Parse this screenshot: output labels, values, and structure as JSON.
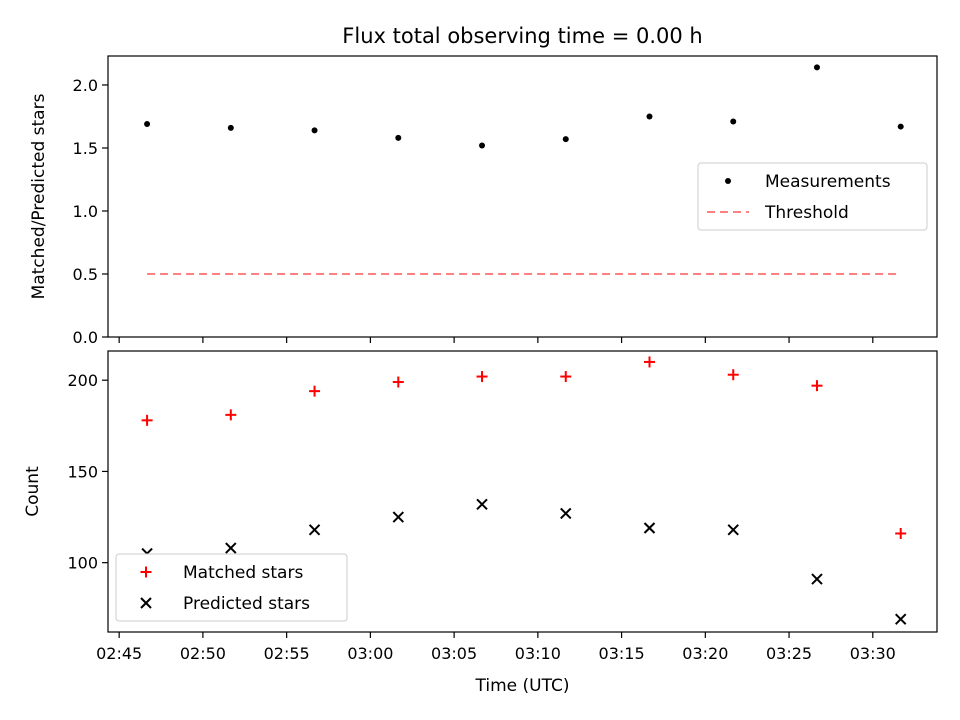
{
  "chart_data": [
    {
      "type": "scatter",
      "title": "Flux total observing time = 0.00 h",
      "xlabel": "",
      "ylabel": "Matched/Predicted stars",
      "ylim": [
        0,
        2.23
      ],
      "yticks": [
        0.0,
        0.5,
        1.0,
        1.5,
        2.0
      ],
      "ytick_labels": [
        "0.0",
        "0.5",
        "1.0",
        "1.5",
        "2.0"
      ],
      "x": [
        "02:46:40",
        "02:51:40",
        "02:56:40",
        "03:01:40",
        "03:06:40",
        "03:11:40",
        "03:16:40",
        "03:21:40",
        "03:26:40",
        "03:31:40"
      ],
      "series": [
        {
          "name": "Measurements",
          "marker": "dot",
          "color": "#000000",
          "values": [
            1.69,
            1.66,
            1.64,
            1.58,
            1.52,
            1.57,
            1.75,
            1.71,
            2.14,
            1.67
          ]
        },
        {
          "name": "Threshold",
          "style": "dashed-line",
          "color": "#ff8080",
          "values": [
            0.5,
            0.5,
            0.5,
            0.5,
            0.5,
            0.5,
            0.5,
            0.5,
            0.5,
            0.5
          ]
        }
      ],
      "legend": "center-right",
      "grid": false
    },
    {
      "type": "scatter",
      "title": "",
      "xlabel": "Time (UTC)",
      "ylabel": "Count",
      "ylim": [
        62,
        216
      ],
      "yticks": [
        100,
        150,
        200
      ],
      "ytick_labels": [
        "100",
        "150",
        "200"
      ],
      "xlim": [
        "02:44:20",
        "03:33:50"
      ],
      "xticks": [
        "02:45",
        "02:50",
        "02:55",
        "03:00",
        "03:05",
        "03:10",
        "03:15",
        "03:20",
        "03:25",
        "03:30"
      ],
      "x": [
        "02:46:40",
        "02:51:40",
        "02:56:40",
        "03:01:40",
        "03:06:40",
        "03:11:40",
        "03:16:40",
        "03:21:40",
        "03:26:40",
        "03:31:40"
      ],
      "series": [
        {
          "name": "Matched stars",
          "marker": "plus",
          "color": "#ff0000",
          "values": [
            178,
            181,
            194,
            199,
            202,
            202,
            210,
            203,
            197,
            116
          ]
        },
        {
          "name": "Predicted stars",
          "marker": "x",
          "color": "#000000",
          "values": [
            105,
            108,
            118,
            125,
            132,
            127,
            119,
            118,
            91,
            69
          ]
        }
      ],
      "legend": "lower-left",
      "grid": false
    }
  ]
}
